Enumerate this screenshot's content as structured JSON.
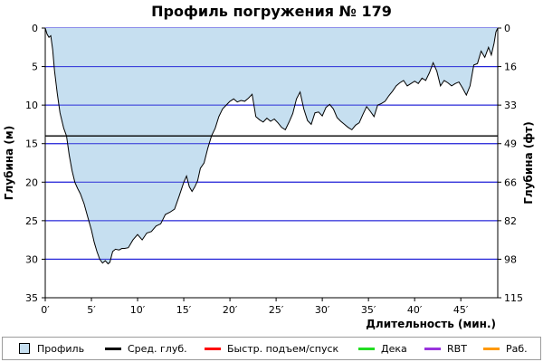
{
  "chart_data": {
    "type": "area",
    "title": "Профиль погружения № 179",
    "xlabel": "Длительность (мин.)",
    "ylabel": "Глубина (м)",
    "ylabel_right": "Глубина (фт)",
    "xlim": [
      0,
      49
    ],
    "ylim": [
      35,
      0
    ],
    "x_ticks": [
      "0′",
      "5′",
      "10′",
      "15′",
      "20′",
      "25′",
      "30′",
      "35′",
      "40′",
      "45′"
    ],
    "y_ticks": [
      "0",
      "5",
      "10",
      "15",
      "20",
      "25",
      "30",
      "35"
    ],
    "y_ticks_right": [
      "0",
      "16",
      "33",
      "49",
      "66",
      "82",
      "98",
      "115"
    ],
    "avg_depth": 14.0,
    "series": [
      {
        "name": "Профиль",
        "x": [
          0,
          0.2,
          0.4,
          0.6,
          0.8,
          1.0,
          1.3,
          1.6,
          2.0,
          2.3,
          2.6,
          2.9,
          3.2,
          3.5,
          3.8,
          4.2,
          4.6,
          5.0,
          5.3,
          5.6,
          5.9,
          6.2,
          6.5,
          6.8,
          7.0,
          7.3,
          7.6,
          8.0,
          8.3,
          8.6,
          9.0,
          9.5,
          10.0,
          10.5,
          11.0,
          11.5,
          12.0,
          12.5,
          13.0,
          13.5,
          14.0,
          14.5,
          15.0,
          15.3,
          15.6,
          15.9,
          16.2,
          16.5,
          16.8,
          17.2,
          17.6,
          18.0,
          18.4,
          18.8,
          19.2,
          19.6,
          20.0,
          20.4,
          20.8,
          21.2,
          21.6,
          22.0,
          22.4,
          22.8,
          23.2,
          23.6,
          24.0,
          24.4,
          24.8,
          25.2,
          25.6,
          26.0,
          26.4,
          26.8,
          27.2,
          27.6,
          28.0,
          28.4,
          28.8,
          29.2,
          29.6,
          30.0,
          30.4,
          30.8,
          31.2,
          31.6,
          32.0,
          32.4,
          32.8,
          33.2,
          33.6,
          34.0,
          34.4,
          34.8,
          35.2,
          35.6,
          36.0,
          36.4,
          36.8,
          37.2,
          37.6,
          38.0,
          38.4,
          38.8,
          39.2,
          39.6,
          40.0,
          40.4,
          40.8,
          41.2,
          41.6,
          42.0,
          42.4,
          42.8,
          43.2,
          43.6,
          44.0,
          44.4,
          44.8,
          45.2,
          45.6,
          46.0,
          46.4,
          46.8,
          47.2,
          47.6,
          48.0,
          48.3,
          48.6,
          48.8,
          49.0
        ],
        "y": [
          0.0,
          0.8,
          1.2,
          1.0,
          2.8,
          5.5,
          8.5,
          11.0,
          13.0,
          14.0,
          16.5,
          18.5,
          20.0,
          20.8,
          21.5,
          22.8,
          24.5,
          26.2,
          27.8,
          29.0,
          30.0,
          30.5,
          30.2,
          30.6,
          30.4,
          29.0,
          28.7,
          28.8,
          28.6,
          28.6,
          28.5,
          27.5,
          26.8,
          27.5,
          26.6,
          26.4,
          25.7,
          25.4,
          24.2,
          23.9,
          23.5,
          21.8,
          20.0,
          19.2,
          20.6,
          21.2,
          20.6,
          19.8,
          18.2,
          17.5,
          15.6,
          14.0,
          13.0,
          11.5,
          10.5,
          10.0,
          9.5,
          9.2,
          9.6,
          9.4,
          9.5,
          9.1,
          8.6,
          11.5,
          11.9,
          12.2,
          11.7,
          12.1,
          11.8,
          12.3,
          12.9,
          13.2,
          12.2,
          11.1,
          9.2,
          8.3,
          10.5,
          12.0,
          12.5,
          11.0,
          10.9,
          11.4,
          10.3,
          9.9,
          10.5,
          11.6,
          12.1,
          12.5,
          12.9,
          13.2,
          12.6,
          12.3,
          11.2,
          10.2,
          10.8,
          11.5,
          10.0,
          9.8,
          9.5,
          8.8,
          8.2,
          7.5,
          7.1,
          6.8,
          7.5,
          7.2,
          6.9,
          7.2,
          6.5,
          6.8,
          5.8,
          4.5,
          5.6,
          7.5,
          6.8,
          7.1,
          7.5,
          7.2,
          7.0,
          7.8,
          8.7,
          7.5,
          4.8,
          4.6,
          3.0,
          3.8,
          2.5,
          3.5,
          2.0,
          0.5,
          0.0
        ]
      }
    ]
  },
  "legend": {
    "items": [
      {
        "label": "Профиль",
        "color": "#c6dff0"
      },
      {
        "label": "Сред. глуб.",
        "color": "#000000"
      },
      {
        "label": "Быстр. подъем/спуск",
        "color": "#ff0000"
      },
      {
        "label": "Дека",
        "color": "#22dd22"
      },
      {
        "label": "RBT",
        "color": "#9933dd"
      },
      {
        "label": "Раб.",
        "color": "#ff9900"
      }
    ]
  }
}
